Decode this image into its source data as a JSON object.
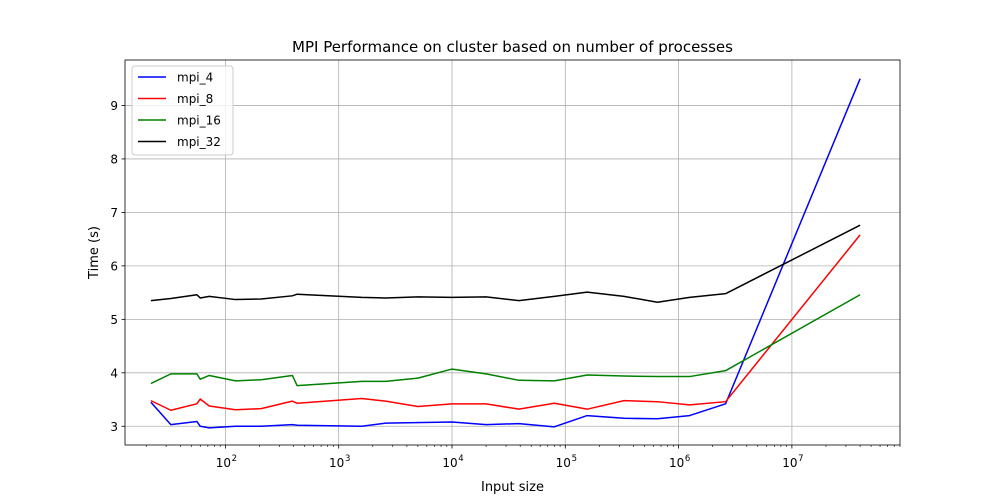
{
  "chart_data": {
    "type": "line",
    "title": "MPI Performance on cluster based on number of processes",
    "xlabel": "Input size",
    "ylabel": "Time (s)",
    "x_scale": "log",
    "xlim": [
      13,
      90000000
    ],
    "ylim": [
      2.65,
      9.85
    ],
    "x_ticks": [
      {
        "value": 100,
        "label_base": "10",
        "label_exp": "2"
      },
      {
        "value": 1000,
        "label_base": "10",
        "label_exp": "3"
      },
      {
        "value": 10000,
        "label_base": "10",
        "label_exp": "4"
      },
      {
        "value": 100000,
        "label_base": "10",
        "label_exp": "5"
      },
      {
        "value": 1000000,
        "label_base": "10",
        "label_exp": "6"
      },
      {
        "value": 10000000,
        "label_base": "10",
        "label_exp": "7"
      }
    ],
    "y_ticks": [
      {
        "value": 3,
        "label": "3"
      },
      {
        "value": 4,
        "label": "4"
      },
      {
        "value": 5,
        "label": "5"
      },
      {
        "value": 6,
        "label": "6"
      },
      {
        "value": 7,
        "label": "7"
      },
      {
        "value": 8,
        "label": "8"
      },
      {
        "value": 9,
        "label": "9"
      }
    ],
    "grid": true,
    "legend_position": "top-left",
    "series": [
      {
        "name": "mpi_4",
        "color": "#0000ff",
        "x": [
          22,
          33,
          56,
          60,
          72,
          123,
          207,
          390,
          430,
          1600,
          2600,
          10000,
          20000,
          39000,
          80000,
          156000,
          330000,
          650000,
          1250000,
          2600000,
          40000000
        ],
        "y": [
          3.45,
          3.03,
          3.09,
          3.0,
          2.97,
          3.0,
          3.0,
          3.03,
          3.02,
          3.0,
          3.06,
          3.08,
          3.03,
          3.05,
          2.99,
          3.2,
          3.15,
          3.14,
          3.2,
          3.42,
          9.5
        ]
      },
      {
        "name": "mpi_8",
        "color": "#ff0000",
        "x": [
          22,
          33,
          56,
          60,
          72,
          123,
          207,
          390,
          430,
          1600,
          2600,
          5000,
          10000,
          20000,
          39000,
          80000,
          156000,
          330000,
          650000,
          1250000,
          2600000,
          40000000
        ],
        "y": [
          3.48,
          3.3,
          3.42,
          3.51,
          3.38,
          3.31,
          3.33,
          3.47,
          3.43,
          3.52,
          3.47,
          3.37,
          3.42,
          3.42,
          3.32,
          3.43,
          3.32,
          3.48,
          3.46,
          3.4,
          3.46,
          6.58
        ]
      },
      {
        "name": "mpi_16",
        "color": "#008000",
        "x": [
          22,
          33,
          56,
          60,
          72,
          123,
          207,
          390,
          430,
          1600,
          2600,
          5000,
          10000,
          20000,
          39000,
          80000,
          156000,
          330000,
          650000,
          1250000,
          2600000,
          40000000
        ],
        "y": [
          3.8,
          3.98,
          3.98,
          3.88,
          3.95,
          3.85,
          3.87,
          3.95,
          3.76,
          3.84,
          3.84,
          3.9,
          4.07,
          3.98,
          3.86,
          3.85,
          3.96,
          3.94,
          3.93,
          3.93,
          4.04,
          5.46
        ]
      },
      {
        "name": "mpi_32",
        "color": "#000000",
        "x": [
          22,
          33,
          56,
          60,
          72,
          123,
          207,
          390,
          430,
          1600,
          2600,
          5000,
          10000,
          20000,
          39000,
          80000,
          156000,
          330000,
          650000,
          1250000,
          2600000,
          40000000
        ],
        "y": [
          5.35,
          5.39,
          5.46,
          5.4,
          5.43,
          5.37,
          5.38,
          5.44,
          5.47,
          5.41,
          5.4,
          5.42,
          5.41,
          5.42,
          5.35,
          5.43,
          5.51,
          5.43,
          5.32,
          5.41,
          5.48,
          6.76
        ]
      }
    ]
  }
}
